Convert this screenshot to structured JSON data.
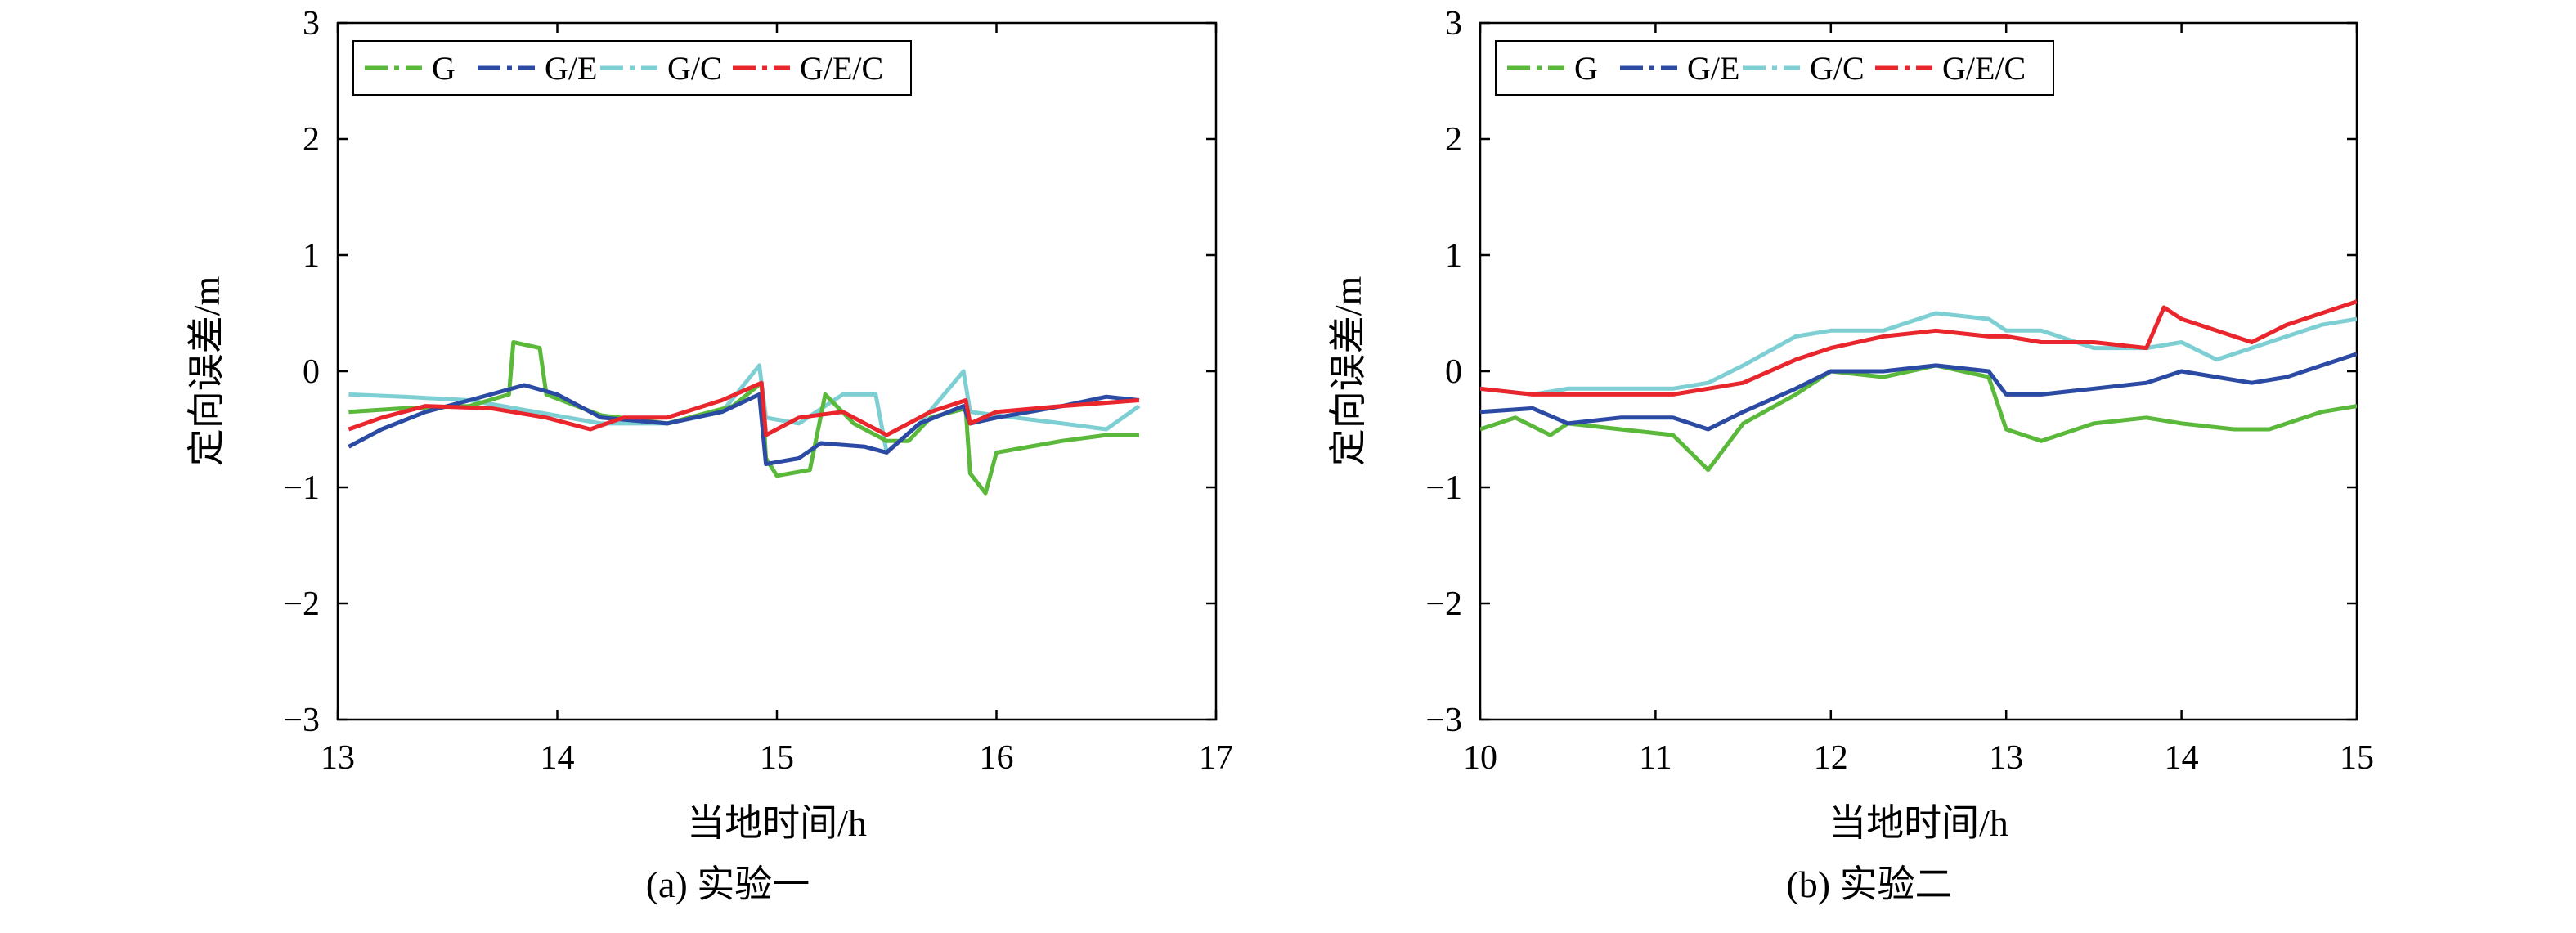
{
  "series_styles": [
    {
      "name": "G",
      "color": "#5ab83a"
    },
    {
      "name": "G/E",
      "color": "#2b4aa3"
    },
    {
      "name": "G/C",
      "color": "#7ecfd3"
    },
    {
      "name": "G/E/C",
      "color": "#e8262c"
    }
  ],
  "chart_data": [
    {
      "type": "line",
      "caption": "(a) 实验一",
      "xlabel": "当地时间/h",
      "ylabel": "定向误差/m",
      "xlim": [
        13,
        17
      ],
      "ylim": [
        -3,
        3
      ],
      "xticks": [
        "13",
        "14",
        "15",
        "16",
        "17"
      ],
      "yticks": [
        "−3",
        "−2",
        "−1",
        "0",
        "1",
        "2",
        "3"
      ],
      "legend": {
        "position": "top-left",
        "entries": [
          "G",
          "G/E",
          "G/C",
          "G/E/C"
        ]
      },
      "series": [
        {
          "name": "G",
          "points": [
            [
              13.05,
              -0.35
            ],
            [
              13.3,
              -0.32
            ],
            [
              13.6,
              -0.3
            ],
            [
              13.78,
              -0.2
            ],
            [
              13.8,
              0.25
            ],
            [
              13.92,
              0.2
            ],
            [
              13.95,
              -0.2
            ],
            [
              14.2,
              -0.38
            ],
            [
              14.5,
              -0.45
            ],
            [
              14.8,
              -0.3
            ],
            [
              14.93,
              -0.1
            ],
            [
              14.95,
              -0.75
            ],
            [
              15.0,
              -0.9
            ],
            [
              15.15,
              -0.85
            ],
            [
              15.22,
              -0.2
            ],
            [
              15.35,
              -0.45
            ],
            [
              15.5,
              -0.6
            ],
            [
              15.6,
              -0.6
            ],
            [
              15.7,
              -0.4
            ],
            [
              15.86,
              -0.32
            ],
            [
              15.88,
              -0.88
            ],
            [
              15.95,
              -1.05
            ],
            [
              16.0,
              -0.7
            ],
            [
              16.3,
              -0.6
            ],
            [
              16.5,
              -0.55
            ],
            [
              16.65,
              -0.55
            ]
          ]
        },
        {
          "name": "G/E",
          "points": [
            [
              13.05,
              -0.65
            ],
            [
              13.2,
              -0.5
            ],
            [
              13.4,
              -0.35
            ],
            [
              13.6,
              -0.25
            ],
            [
              13.85,
              -0.12
            ],
            [
              14.0,
              -0.2
            ],
            [
              14.2,
              -0.4
            ],
            [
              14.5,
              -0.45
            ],
            [
              14.75,
              -0.35
            ],
            [
              14.92,
              -0.2
            ],
            [
              14.95,
              -0.8
            ],
            [
              15.1,
              -0.75
            ],
            [
              15.2,
              -0.62
            ],
            [
              15.4,
              -0.65
            ],
            [
              15.5,
              -0.7
            ],
            [
              15.65,
              -0.45
            ],
            [
              15.85,
              -0.3
            ],
            [
              15.88,
              -0.45
            ],
            [
              16.0,
              -0.4
            ],
            [
              16.3,
              -0.3
            ],
            [
              16.5,
              -0.22
            ],
            [
              16.65,
              -0.25
            ]
          ]
        },
        {
          "name": "G/C",
          "points": [
            [
              13.05,
              -0.2
            ],
            [
              13.3,
              -0.22
            ],
            [
              13.6,
              -0.25
            ],
            [
              13.9,
              -0.35
            ],
            [
              14.2,
              -0.45
            ],
            [
              14.5,
              -0.45
            ],
            [
              14.75,
              -0.35
            ],
            [
              14.92,
              0.05
            ],
            [
              14.95,
              -0.4
            ],
            [
              15.1,
              -0.45
            ],
            [
              15.3,
              -0.2
            ],
            [
              15.45,
              -0.2
            ],
            [
              15.5,
              -0.7
            ],
            [
              15.65,
              -0.45
            ],
            [
              15.85,
              0.0
            ],
            [
              15.88,
              -0.35
            ],
            [
              16.0,
              -0.38
            ],
            [
              16.3,
              -0.45
            ],
            [
              16.5,
              -0.5
            ],
            [
              16.65,
              -0.3
            ]
          ]
        },
        {
          "name": "G/E/C",
          "points": [
            [
              13.05,
              -0.5
            ],
            [
              13.2,
              -0.4
            ],
            [
              13.4,
              -0.3
            ],
            [
              13.7,
              -0.32
            ],
            [
              13.95,
              -0.4
            ],
            [
              14.15,
              -0.5
            ],
            [
              14.3,
              -0.4
            ],
            [
              14.5,
              -0.4
            ],
            [
              14.75,
              -0.25
            ],
            [
              14.93,
              -0.1
            ],
            [
              14.95,
              -0.55
            ],
            [
              15.1,
              -0.4
            ],
            [
              15.3,
              -0.35
            ],
            [
              15.5,
              -0.55
            ],
            [
              15.7,
              -0.35
            ],
            [
              15.86,
              -0.25
            ],
            [
              15.88,
              -0.45
            ],
            [
              16.0,
              -0.35
            ],
            [
              16.3,
              -0.3
            ],
            [
              16.65,
              -0.25
            ]
          ]
        }
      ]
    },
    {
      "type": "line",
      "caption": "(b) 实验二",
      "xlabel": "当地时间/h",
      "ylabel": "定向误差/m",
      "xlim": [
        10,
        15
      ],
      "ylim": [
        -3,
        3
      ],
      "xticks": [
        "10",
        "11",
        "12",
        "13",
        "14",
        "15"
      ],
      "yticks": [
        "−3",
        "−2",
        "−1",
        "0",
        "1",
        "2",
        "3"
      ],
      "legend": {
        "position": "top-left",
        "entries": [
          "G",
          "G/E",
          "G/C",
          "G/E/C"
        ]
      },
      "series": [
        {
          "name": "G",
          "points": [
            [
              10.0,
              -0.5
            ],
            [
              10.2,
              -0.4
            ],
            [
              10.4,
              -0.55
            ],
            [
              10.5,
              -0.45
            ],
            [
              10.8,
              -0.5
            ],
            [
              11.1,
              -0.55
            ],
            [
              11.3,
              -0.85
            ],
            [
              11.5,
              -0.45
            ],
            [
              11.8,
              -0.2
            ],
            [
              12.0,
              0.0
            ],
            [
              12.3,
              -0.05
            ],
            [
              12.6,
              0.05
            ],
            [
              12.9,
              -0.05
            ],
            [
              13.0,
              -0.5
            ],
            [
              13.2,
              -0.6
            ],
            [
              13.5,
              -0.45
            ],
            [
              13.8,
              -0.4
            ],
            [
              14.0,
              -0.45
            ],
            [
              14.3,
              -0.5
            ],
            [
              14.5,
              -0.5
            ],
            [
              14.8,
              -0.35
            ],
            [
              15.0,
              -0.3
            ]
          ]
        },
        {
          "name": "G/E",
          "points": [
            [
              10.0,
              -0.35
            ],
            [
              10.3,
              -0.32
            ],
            [
              10.5,
              -0.45
            ],
            [
              10.8,
              -0.4
            ],
            [
              11.1,
              -0.4
            ],
            [
              11.3,
              -0.5
            ],
            [
              11.5,
              -0.35
            ],
            [
              11.8,
              -0.15
            ],
            [
              12.0,
              0.0
            ],
            [
              12.3,
              0.0
            ],
            [
              12.6,
              0.05
            ],
            [
              12.9,
              0.0
            ],
            [
              13.0,
              -0.2
            ],
            [
              13.2,
              -0.2
            ],
            [
              13.5,
              -0.15
            ],
            [
              13.8,
              -0.1
            ],
            [
              14.0,
              0.0
            ],
            [
              14.2,
              -0.05
            ],
            [
              14.4,
              -0.1
            ],
            [
              14.6,
              -0.05
            ],
            [
              14.8,
              0.05
            ],
            [
              15.0,
              0.15
            ]
          ]
        },
        {
          "name": "G/C",
          "points": [
            [
              10.0,
              -0.15
            ],
            [
              10.3,
              -0.2
            ],
            [
              10.5,
              -0.15
            ],
            [
              10.8,
              -0.15
            ],
            [
              11.1,
              -0.15
            ],
            [
              11.3,
              -0.1
            ],
            [
              11.5,
              0.05
            ],
            [
              11.8,
              0.3
            ],
            [
              12.0,
              0.35
            ],
            [
              12.3,
              0.35
            ],
            [
              12.6,
              0.5
            ],
            [
              12.9,
              0.45
            ],
            [
              13.0,
              0.35
            ],
            [
              13.2,
              0.35
            ],
            [
              13.5,
              0.2
            ],
            [
              13.8,
              0.2
            ],
            [
              14.0,
              0.25
            ],
            [
              14.2,
              0.1
            ],
            [
              14.4,
              0.2
            ],
            [
              14.6,
              0.3
            ],
            [
              14.8,
              0.4
            ],
            [
              15.0,
              0.45
            ]
          ]
        },
        {
          "name": "G/E/C",
          "points": [
            [
              10.0,
              -0.15
            ],
            [
              10.3,
              -0.2
            ],
            [
              10.5,
              -0.2
            ],
            [
              10.8,
              -0.2
            ],
            [
              11.1,
              -0.2
            ],
            [
              11.3,
              -0.15
            ],
            [
              11.5,
              -0.1
            ],
            [
              11.8,
              0.1
            ],
            [
              12.0,
              0.2
            ],
            [
              12.3,
              0.3
            ],
            [
              12.6,
              0.35
            ],
            [
              12.9,
              0.3
            ],
            [
              13.0,
              0.3
            ],
            [
              13.2,
              0.25
            ],
            [
              13.5,
              0.25
            ],
            [
              13.8,
              0.2
            ],
            [
              13.9,
              0.55
            ],
            [
              14.0,
              0.45
            ],
            [
              14.2,
              0.35
            ],
            [
              14.4,
              0.25
            ],
            [
              14.6,
              0.4
            ],
            [
              14.8,
              0.5
            ],
            [
              15.0,
              0.6
            ]
          ]
        }
      ]
    }
  ]
}
